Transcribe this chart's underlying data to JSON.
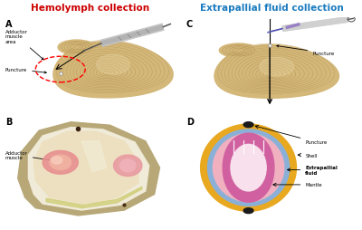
{
  "title_left": "Hemolymph collection",
  "title_right": "Extrapallial fluid collection",
  "title_left_color": "#cc0000",
  "title_right_color": "#1a7abf",
  "panel_labels": [
    "A",
    "B",
    "C",
    "D"
  ],
  "bg_color": "#ffffff",
  "shell_base_color": "#d4b87a",
  "shell_line_color": "#b09050",
  "shell_dark_color": "#c0a060",
  "shell_light_color": "#e8d4a0",
  "diagram_colors": {
    "shell_outer": "#e8a820",
    "shell_layer": "#8ab0d8",
    "extrapallial": "#f0b0c0",
    "mantle_dark": "#d060a0",
    "body_inner": "#f8e0ec",
    "puncture": "#1a1a1a"
  }
}
